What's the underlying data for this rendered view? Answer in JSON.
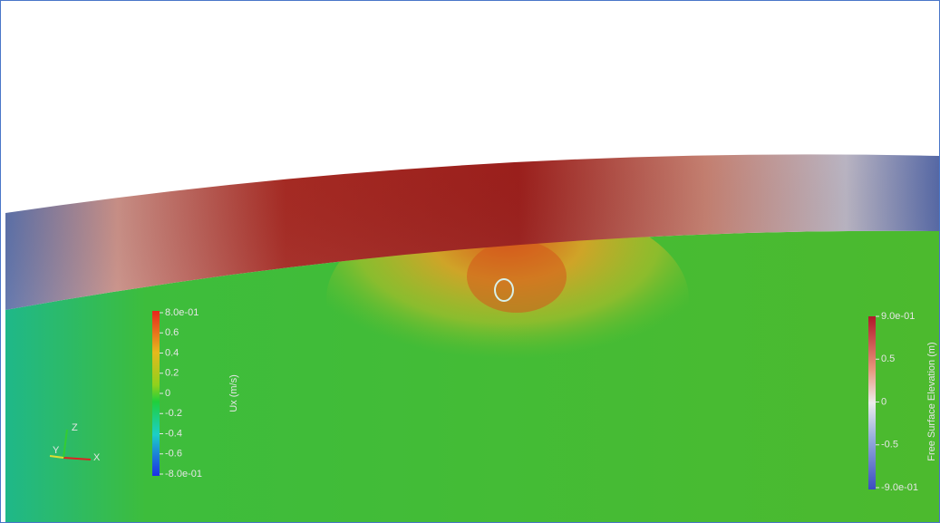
{
  "legends": [
    {
      "title": "Ux (m/s)",
      "labels": [
        "8.0e-01",
        "0.6",
        "0.4",
        "0.2",
        "0",
        "-0.2",
        "-0.4",
        "-0.6",
        "-8.0e-01"
      ]
    },
    {
      "title": "Free Surface Elevation (m)",
      "labels": [
        "9.0e-01",
        "0.5",
        "0",
        "-0.5",
        "-9.0e-01"
      ]
    }
  ],
  "axes_triad": {
    "x": "X",
    "y": "Y",
    "z": "Z"
  }
}
